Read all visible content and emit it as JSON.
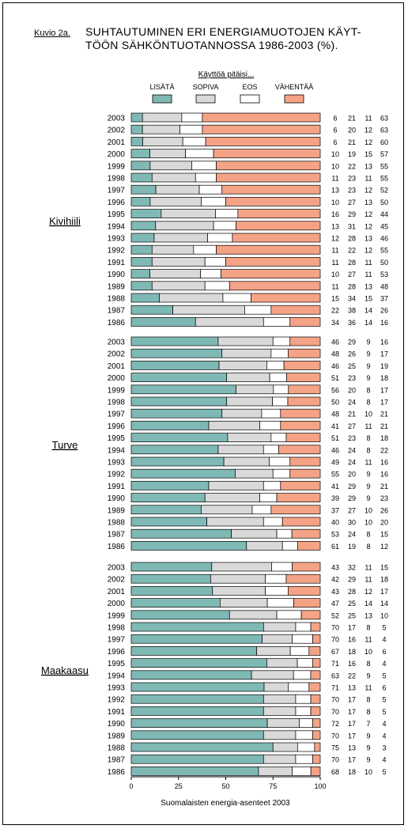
{
  "figure_label": "Kuvio 2a.",
  "title_line1": "SUHTAUTUMINEN ERI ENERGIAMUOTOJEN KÄYT-",
  "title_line2": "TÖÖN SÄHKÖNTUOTANNOSSA 1986-2003 (%).",
  "legend_title": "Käyttöä pitäisi...",
  "source": "Suomalaisten energia-asenteet 2003",
  "colors": {
    "LISÄTÄ": "#7fb9b5",
    "SOPIVA": "#d9d9d9",
    "EOS": "#ffffff",
    "VÄHENTÄÄ": "#f5a386"
  },
  "chart_data": {
    "type": "bar",
    "orientation": "horizontal",
    "stacked": true,
    "xlim": [
      0,
      100
    ],
    "xticks": [
      0,
      25,
      50,
      75,
      100
    ],
    "series_names": [
      "LISÄTÄ",
      "SOPIVA",
      "EOS",
      "VÄHENTÄÄ"
    ],
    "groups": [
      {
        "name": "Kivihiili",
        "years": [
          "2003",
          "2002",
          "2001",
          "2000",
          "1999",
          "1998",
          "1997",
          "1996",
          "1995",
          "1994",
          "1993",
          "1992",
          "1991",
          "1990",
          "1989",
          "1988",
          "1987",
          "1986"
        ],
        "values": [
          [
            6,
            21,
            11,
            63
          ],
          [
            6,
            20,
            12,
            63
          ],
          [
            6,
            21,
            12,
            60
          ],
          [
            10,
            19,
            15,
            57
          ],
          [
            10,
            22,
            13,
            55
          ],
          [
            11,
            23,
            11,
            55
          ],
          [
            13,
            23,
            12,
            52
          ],
          [
            10,
            27,
            13,
            50
          ],
          [
            16,
            29,
            12,
            44
          ],
          [
            13,
            31,
            12,
            45
          ],
          [
            12,
            28,
            13,
            46
          ],
          [
            11,
            22,
            12,
            55
          ],
          [
            11,
            28,
            11,
            50
          ],
          [
            10,
            27,
            11,
            53
          ],
          [
            11,
            28,
            13,
            48
          ],
          [
            15,
            34,
            15,
            37
          ],
          [
            22,
            38,
            14,
            26
          ],
          [
            34,
            36,
            14,
            16
          ]
        ]
      },
      {
        "name": "Turve",
        "years": [
          "2003",
          "2002",
          "2001",
          "2000",
          "1999",
          "1998",
          "1997",
          "1996",
          "1995",
          "1994",
          "1993",
          "1992",
          "1991",
          "1990",
          "1989",
          "1988",
          "1987",
          "1986"
        ],
        "values": [
          [
            46,
            29,
            9,
            16
          ],
          [
            48,
            26,
            9,
            17
          ],
          [
            46,
            25,
            9,
            19
          ],
          [
            51,
            23,
            9,
            18
          ],
          [
            56,
            20,
            8,
            17
          ],
          [
            50,
            24,
            8,
            17
          ],
          [
            48,
            21,
            10,
            21
          ],
          [
            41,
            27,
            11,
            21
          ],
          [
            51,
            23,
            8,
            18
          ],
          [
            46,
            24,
            8,
            22
          ],
          [
            49,
            24,
            11,
            16
          ],
          [
            55,
            20,
            9,
            16
          ],
          [
            41,
            29,
            9,
            21
          ],
          [
            39,
            29,
            9,
            23
          ],
          [
            37,
            27,
            10,
            26
          ],
          [
            40,
            30,
            10,
            20
          ],
          [
            53,
            24,
            8,
            15
          ],
          [
            61,
            19,
            8,
            12
          ]
        ]
      },
      {
        "name": "Maakaasu",
        "years": [
          "2003",
          "2002",
          "2001",
          "2000",
          "1999",
          "1998",
          "1997",
          "1996",
          "1995",
          "1994",
          "1993",
          "1992",
          "1991",
          "1990",
          "1989",
          "1988",
          "1987",
          "1986"
        ],
        "values": [
          [
            43,
            32,
            11,
            15
          ],
          [
            42,
            29,
            11,
            18
          ],
          [
            43,
            28,
            12,
            17
          ],
          [
            47,
            25,
            14,
            14
          ],
          [
            52,
            25,
            13,
            10
          ],
          [
            70,
            17,
            8,
            5
          ],
          [
            70,
            16,
            11,
            4
          ],
          [
            67,
            18,
            10,
            6
          ],
          [
            71,
            16,
            8,
            4
          ],
          [
            63,
            22,
            9,
            5
          ],
          [
            71,
            13,
            11,
            6
          ],
          [
            70,
            17,
            8,
            5
          ],
          [
            70,
            17,
            8,
            5
          ],
          [
            72,
            17,
            7,
            4
          ],
          [
            70,
            17,
            9,
            4
          ],
          [
            75,
            13,
            9,
            3
          ],
          [
            70,
            17,
            9,
            4
          ],
          [
            68,
            18,
            10,
            5
          ]
        ]
      }
    ]
  }
}
